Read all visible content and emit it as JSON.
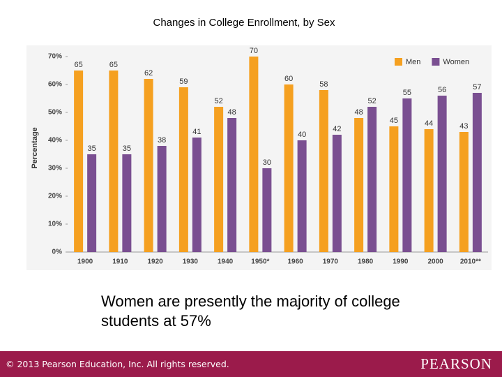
{
  "chart_data": {
    "type": "bar",
    "title": "Changes in College Enrollment, by Sex",
    "y_label": "Percentage",
    "categories": [
      "1900",
      "1910",
      "1920",
      "1930",
      "1940",
      "1950*",
      "1960",
      "1970",
      "1980",
      "1990",
      "2000",
      "2010**"
    ],
    "series": [
      {
        "name": "Men",
        "color": "#f5a020",
        "values": [
          65,
          65,
          62,
          59,
          52,
          70,
          60,
          58,
          48,
          45,
          44,
          43
        ]
      },
      {
        "name": "Women",
        "color": "#7a4f91",
        "values": [
          35,
          35,
          38,
          41,
          48,
          30,
          40,
          42,
          52,
          55,
          56,
          57
        ]
      }
    ],
    "ylim": [
      0,
      70
    ],
    "yticks": [
      {
        "value": 0,
        "label": "0%"
      },
      {
        "value": 10,
        "label": "10%"
      },
      {
        "value": 20,
        "label": "20%"
      },
      {
        "value": 30,
        "label": "30%"
      },
      {
        "value": 40,
        "label": "40%"
      },
      {
        "value": 50,
        "label": "50%"
      },
      {
        "value": 60,
        "label": "60%"
      },
      {
        "value": 70,
        "label": "70%"
      }
    ],
    "legend": "top-right"
  },
  "slide": {
    "caption": "Women are presently the majority of college students at 57%",
    "copyright": "© 2013  Pearson Education, Inc. All rights reserved.",
    "logo": "PEARSON"
  }
}
